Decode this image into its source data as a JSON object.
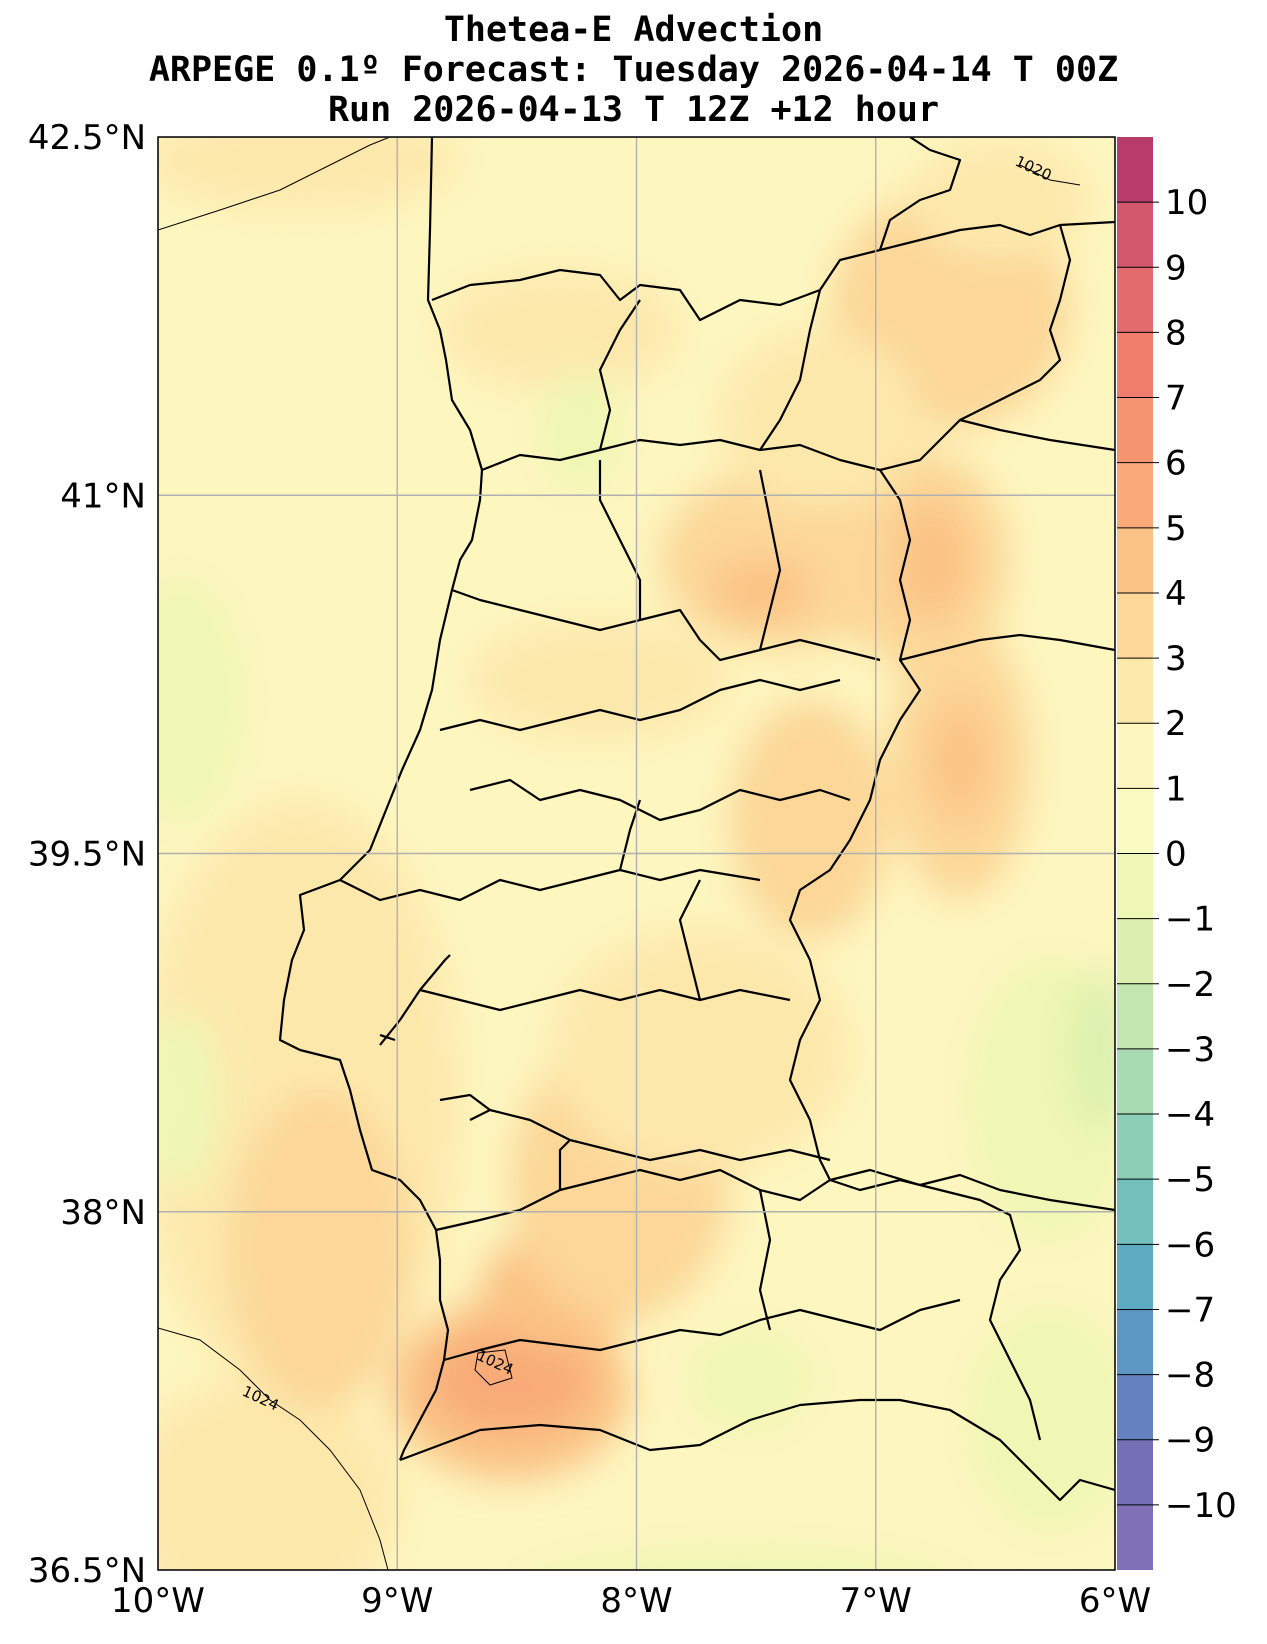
{
  "title": {
    "line1": "Thetea-E Advection",
    "line2": "ARPEGE 0.1º Forecast: Tuesday 2026-04-14 T 00Z",
    "line3": "Run 2026-04-13 T 12Z +12 hour"
  },
  "map": {
    "lon_range": [
      -10,
      -6
    ],
    "lat_range": [
      36.5,
      42.5
    ],
    "x_ticks": [
      {
        "lon": -10,
        "label": "10°W"
      },
      {
        "lon": -9,
        "label": "9°W"
      },
      {
        "lon": -8,
        "label": "8°W"
      },
      {
        "lon": -7,
        "label": "7°W"
      },
      {
        "lon": -6,
        "label": "6°W"
      }
    ],
    "y_ticks": [
      {
        "lat": 42.5,
        "label": "42.5°N"
      },
      {
        "lat": 41,
        "label": "41°N"
      },
      {
        "lat": 39.5,
        "label": "39.5°N"
      },
      {
        "lat": 38,
        "label": "38°N"
      },
      {
        "lat": 36.5,
        "label": "36.5°N"
      }
    ],
    "gridlines": true,
    "pressure_contour_labels": [
      {
        "text": "1020",
        "lon": -6.35,
        "lat": 42.35
      },
      {
        "text": "1024",
        "lon": -9.58,
        "lat": 37.2
      },
      {
        "text": "1024",
        "lon": -8.6,
        "lat": 37.35
      }
    ]
  },
  "colorbar": {
    "levels": [
      {
        "label": "10",
        "value": 10,
        "color": "#b83c6b"
      },
      {
        "label": "9",
        "value": 9,
        "color": "#d2566c"
      },
      {
        "label": "8",
        "value": 8,
        "color": "#e36b6d"
      },
      {
        "label": "7",
        "value": 7,
        "color": "#ef7f6b"
      },
      {
        "label": "6",
        "value": 6,
        "color": "#f59570"
      },
      {
        "label": "5",
        "value": 5,
        "color": "#f8ab78"
      },
      {
        "label": "4",
        "value": 4,
        "color": "#fbc285"
      },
      {
        "label": "3",
        "value": 3,
        "color": "#fcd798"
      },
      {
        "label": "2",
        "value": 2,
        "color": "#fde8ac"
      },
      {
        "label": "1",
        "value": 1,
        "color": "#fdf6bf"
      },
      {
        "label": "0",
        "value": 0,
        "color": "#f8fac0"
      },
      {
        "label": "−1",
        "value": -1,
        "color": "#eef7b3"
      },
      {
        "label": "−2",
        "value": -2,
        "color": "#dbf0ae"
      },
      {
        "label": "−3",
        "value": -3,
        "color": "#c3e6b0"
      },
      {
        "label": "−4",
        "value": -4,
        "color": "#a8dbb2"
      },
      {
        "label": "−5",
        "value": -5,
        "color": "#8ccfb6"
      },
      {
        "label": "−6",
        "value": -6,
        "color": "#72bfbb"
      },
      {
        "label": "−7",
        "value": -7,
        "color": "#5eacc2"
      },
      {
        "label": "−8",
        "value": -8,
        "color": "#5c97c4"
      },
      {
        "label": "−9",
        "value": -9,
        "color": "#6482bf"
      },
      {
        "label": "−10",
        "value": -10,
        "color": "#7570b6"
      }
    ],
    "bottom_color": "#8070b8"
  },
  "colors": {
    "background": "#fdf6bf",
    "warm1": "#fde8ac",
    "warm2": "#fcd798",
    "warm3": "#fbc285",
    "warm4": "#f8ab78",
    "cool1": "#eef7b3",
    "cool2": "#dbf0ae"
  }
}
